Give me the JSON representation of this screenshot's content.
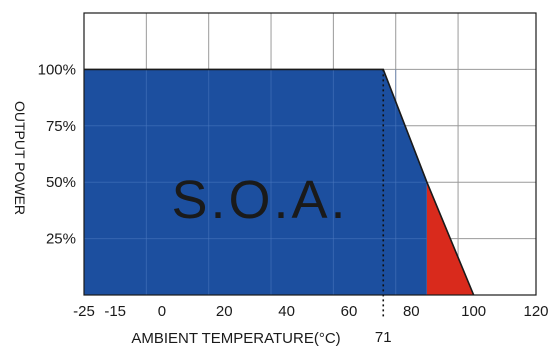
{
  "chart_data": {
    "type": "area",
    "xlabel": "AMBIENT TEMPERATURE(°C)",
    "ylabel": "OUTPUT POWER",
    "xlim": [
      -25,
      120
    ],
    "ylim": [
      0,
      125
    ],
    "x_ticks": [
      "-25",
      "-15",
      "0",
      "20",
      "40",
      "60",
      "80",
      "100",
      "120"
    ],
    "x_tick_values": [
      -25,
      -15,
      0,
      20,
      40,
      60,
      80,
      100,
      120
    ],
    "y_ticks": [
      "25%",
      "50%",
      "75%",
      "100%"
    ],
    "y_tick_values": [
      25,
      50,
      75,
      100
    ],
    "x_grid_values": [
      -25,
      -5,
      15,
      35,
      55,
      75,
      95,
      120
    ],
    "y_grid_values": [
      0,
      25,
      50,
      75,
      100,
      125
    ],
    "grid": true,
    "series": [
      {
        "label": "S.O.A.",
        "color": "#1c4f9f",
        "points": [
          [
            -25,
            0
          ],
          [
            -25,
            100
          ],
          [
            71,
            100
          ],
          [
            85,
            50
          ],
          [
            85,
            0
          ]
        ]
      },
      {
        "color": "#d92a1c",
        "points": [
          [
            85,
            0
          ],
          [
            85,
            50
          ],
          [
            100,
            0
          ]
        ]
      }
    ],
    "marker": {
      "x": 71,
      "label": "71",
      "style": "dotted"
    },
    "boundary": {
      "points": [
        [
          -25,
          100
        ],
        [
          71,
          100
        ],
        [
          85,
          50
        ],
        [
          100,
          0
        ]
      ],
      "color": "#1a1a1a"
    }
  }
}
